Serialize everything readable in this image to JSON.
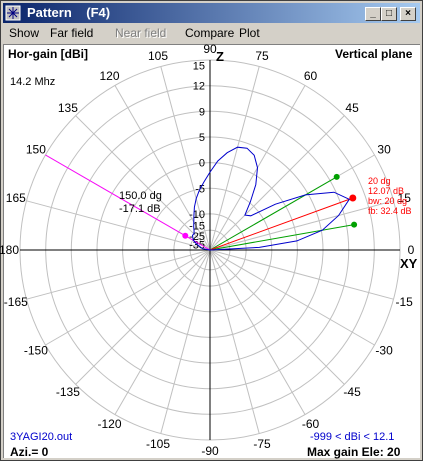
{
  "window": {
    "title": "Pattern    (F4)",
    "controls": [
      "_",
      "□",
      "×"
    ]
  },
  "menu": [
    {
      "label": "Show",
      "disabled": false
    },
    {
      "label": "Far field",
      "disabled": false
    },
    {
      "label": "Near field",
      "disabled": true
    },
    {
      "label": "Compare",
      "disabled": false
    },
    {
      "label": "Plot",
      "disabled": false
    }
  ],
  "plot": {
    "gain_label": "Hor-gain [dBi]",
    "plane_label": "Vertical plane",
    "frequency": "14.2 Mhz",
    "file": "3YAGI20.out",
    "azi": "Azi.= 0",
    "range": "-999 < dBi < 12.1",
    "max_gain": "Max gain Ele: 20",
    "angle_labels": [
      "0",
      "15",
      "30",
      "45",
      "60",
      "75",
      "90",
      "105",
      "120",
      "135",
      "150",
      "165",
      "180",
      "-165",
      "-150",
      "-135",
      "-120",
      "-105",
      "-90",
      "-75",
      "-60",
      "-45",
      "-30",
      "-15"
    ],
    "z_label": "Z",
    "xy_label": "XY",
    "gain_scale": [
      "15",
      "12",
      "9",
      "5",
      "0",
      "-5",
      "-10",
      "-15",
      "-25",
      "-35"
    ],
    "cursor": {
      "angle": "150.0 dg",
      "gain": "-17.1 dB"
    },
    "marker": {
      "angle": "20 dg",
      "gain": "12.07 dB",
      "bw": "bw: 20 dg",
      "fb": "fb: 32.4 dB"
    },
    "colors": {
      "pattern": "#0000cc",
      "beamwidth": "#00a000",
      "max": "#ff0000",
      "cursor": "#ff00ff",
      "grid": "#c0c0c0",
      "axis": "#000000"
    }
  }
}
